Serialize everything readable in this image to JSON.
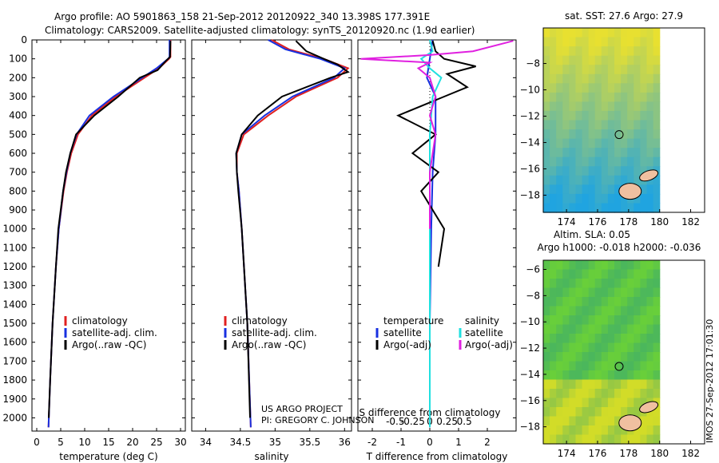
{
  "header": {
    "line1": "Argo profile: AO 5901863_158 21-Sep-2012 20120922_340 13.398S 177.391E",
    "line2": "Climatology: CARS2009. Satellite-adjusted climatology: synTS_20120920.nc (1.9d earlier)"
  },
  "colors": {
    "climatology": "#e02020",
    "satellite": "#1830e0",
    "argo": "#000000",
    "salt_satellite": "#20e0e0",
    "salt_argo": "#e020e0",
    "map_warm": "#e8e030",
    "map_cool": "#2080d8",
    "land": "#f0c0a0"
  },
  "credit": {
    "line1": "US ARGO PROJECT",
    "line2": "PI: GREGORY C. JOHNSON"
  },
  "timestamp": "IMOS 27-Sep-2012 17:01:30",
  "chart_data": [
    {
      "type": "line",
      "name": "temperature",
      "xlabel": "temperature (deg C)",
      "ylabel": "",
      "xlim": [
        -1,
        31
      ],
      "ylim": [
        2070,
        0
      ],
      "xticks": [
        0,
        5,
        10,
        15,
        20,
        25,
        30
      ],
      "yticks": [
        0,
        100,
        200,
        300,
        400,
        500,
        600,
        700,
        800,
        900,
        1000,
        1100,
        1200,
        1300,
        1400,
        1500,
        1600,
        1700,
        1800,
        1900,
        2000
      ],
      "legend": [
        "climatology",
        "satellite-adj. clim.",
        "Argo(..raw -QC)"
      ],
      "series": [
        {
          "name": "climatology",
          "key": "climatology",
          "depth": [
            0,
            90,
            100,
            150,
            200,
            300,
            400,
            500,
            600,
            700,
            800,
            1000,
            1200,
            1500,
            1800,
            2050
          ],
          "values": [
            27.9,
            27.9,
            27.6,
            25.5,
            22.5,
            16.5,
            11.5,
            8.6,
            7.2,
            6.3,
            5.6,
            4.6,
            4.0,
            3.3,
            2.8,
            2.45
          ]
        },
        {
          "name": "satellite-adj. clim.",
          "key": "satellite",
          "depth": [
            0,
            90,
            100,
            150,
            200,
            300,
            400,
            500,
            600,
            700,
            800,
            1000,
            1200,
            1500,
            1800,
            2050
          ],
          "values": [
            27.7,
            27.7,
            27.4,
            25.0,
            22.0,
            16.0,
            11.0,
            8.3,
            7.0,
            6.2,
            5.5,
            4.6,
            4.0,
            3.3,
            2.8,
            2.45
          ]
        },
        {
          "name": "Argo(..raw -QC)",
          "key": "argo",
          "depth": [
            5,
            90,
            110,
            160,
            200,
            300,
            400,
            500,
            600,
            700,
            800,
            1000,
            1200,
            1500,
            1800,
            2000
          ],
          "values": [
            27.9,
            27.8,
            27.0,
            25.2,
            21.5,
            17.0,
            12.0,
            8.2,
            7.0,
            6.1,
            5.5,
            4.5,
            4.0,
            3.3,
            2.8,
            2.5
          ]
        }
      ]
    },
    {
      "type": "line",
      "name": "salinity",
      "xlabel": "salinity",
      "ylabel": "",
      "xlim": [
        33.8,
        36.1
      ],
      "ylim": [
        2070,
        0
      ],
      "xticks": [
        34,
        34.5,
        35,
        35.5,
        36
      ],
      "legend": [
        "climatology",
        "satellite-adj. clim.",
        "Argo(..raw -QC)"
      ],
      "series": [
        {
          "name": "climatology",
          "key": "climatology",
          "depth": [
            0,
            50,
            100,
            150,
            200,
            300,
            400,
            500,
            600,
            700,
            800,
            1000,
            1500,
            2050
          ],
          "values": [
            34.95,
            35.2,
            35.7,
            36.05,
            35.9,
            35.3,
            34.9,
            34.55,
            34.45,
            34.45,
            34.48,
            34.52,
            34.6,
            34.65
          ]
        },
        {
          "name": "satellite-adj. clim.",
          "key": "satellite",
          "depth": [
            0,
            50,
            100,
            150,
            200,
            300,
            400,
            500,
            600,
            700,
            800,
            1000,
            1500,
            2050
          ],
          "values": [
            34.9,
            35.15,
            35.65,
            36.0,
            35.85,
            35.25,
            34.85,
            34.52,
            34.44,
            34.45,
            34.48,
            34.52,
            34.6,
            34.65
          ]
        },
        {
          "name": "Argo(..raw -QC)",
          "key": "argo",
          "depth": [
            5,
            60,
            100,
            130,
            170,
            200,
            300,
            400,
            500,
            600,
            700,
            800,
            1000,
            1500,
            2000
          ],
          "values": [
            35.3,
            35.45,
            35.7,
            35.9,
            36.05,
            35.8,
            35.1,
            34.75,
            34.52,
            34.44,
            34.45,
            34.47,
            34.52,
            34.6,
            34.64
          ]
        }
      ]
    },
    {
      "type": "line",
      "name": "difference",
      "xlabel": "T difference from climatology",
      "xlabel2": "S difference from climatology",
      "xlim": [
        -2.5,
        3.0
      ],
      "ylim": [
        2070,
        0
      ],
      "xticks": [
        -2,
        -1,
        0,
        1,
        2
      ],
      "xticks_s_labels": [
        "-0.5",
        "-0.25",
        "0",
        "0.25",
        "0.5"
      ],
      "legend_temperature": [
        "temperature",
        "satellite",
        "Argo(-adj)"
      ],
      "legend_salinity": [
        "salinity",
        "satellite",
        "Argo(-adj)"
      ],
      "series": [
        {
          "name": "satellite",
          "key": "satellite",
          "depth": [
            0,
            100,
            200,
            300,
            500,
            700,
            1000,
            1500,
            2050
          ],
          "values": [
            0.1,
            0.0,
            -0.1,
            0.2,
            0.2,
            0.1,
            0.05,
            0.0,
            0.0
          ]
        },
        {
          "name": "Argo(-adj)",
          "key": "argo",
          "depth": [
            5,
            60,
            100,
            140,
            180,
            250,
            300,
            400,
            500,
            600,
            700,
            800,
            1000,
            1200
          ],
          "values": [
            0.1,
            0.2,
            0.5,
            1.6,
            0.6,
            1.3,
            0.5,
            -1.1,
            0.2,
            -0.6,
            0.3,
            -0.3,
            0.5,
            0.3
          ]
        },
        {
          "name": "salinity satellite",
          "key": "salt_satellite",
          "depth": [
            0,
            60,
            100,
            150,
            200,
            300,
            500,
            700,
            1000,
            2050
          ],
          "values": [
            0.0,
            0.1,
            -0.3,
            0.0,
            0.4,
            0.1,
            0.0,
            0.0,
            0.0,
            0.0
          ]
        },
        {
          "name": "salinity Argo(-adj)",
          "key": "salt_argo",
          "depth": [
            5,
            60,
            80,
            100,
            120,
            150,
            200,
            300,
            400,
            500,
            700,
            1000
          ],
          "values": [
            2.9,
            1.5,
            0.0,
            -2.4,
            0.0,
            -0.4,
            0.0,
            0.2,
            0.0,
            0.2,
            0.0,
            0.0
          ]
        }
      ]
    },
    {
      "type": "heatmap",
      "name": "sst-map",
      "title": "sat. SST: 27.6  Argo: 27.9",
      "xlim": [
        172.5,
        182.9
      ],
      "ylim": [
        -19.3,
        -5.3
      ],
      "xticks": [
        174,
        176,
        178,
        180,
        182
      ],
      "yticks": [
        -8,
        -10,
        -12,
        -14,
        -16,
        -18
      ],
      "argo_position": {
        "lon": 177.391,
        "lat": -13.398
      }
    },
    {
      "type": "heatmap",
      "name": "sla-map",
      "title": "Altim. SLA: 0.05",
      "subtitle": "Argo h1000: -0.018  h2000: -0.036",
      "xlim": [
        172.5,
        182.9
      ],
      "ylim": [
        -19.3,
        -5.3
      ],
      "xticks": [
        174,
        176,
        178,
        180,
        182
      ],
      "yticks": [
        -6,
        -8,
        -10,
        -12,
        -14,
        -16,
        -18
      ],
      "argo_position": {
        "lon": 177.391,
        "lat": -13.398
      }
    }
  ]
}
